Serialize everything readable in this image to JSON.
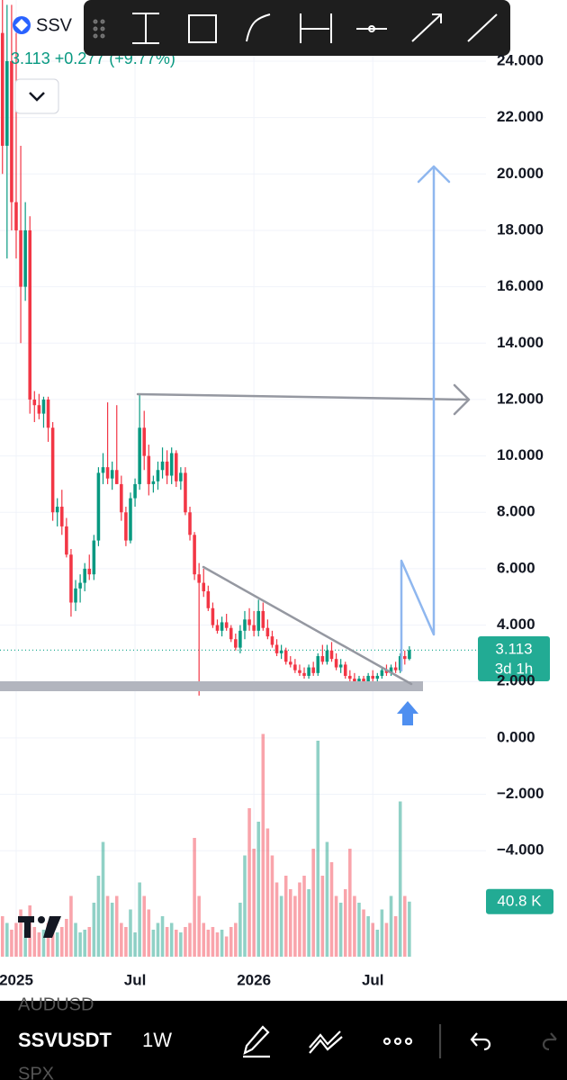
{
  "header": {
    "symbol": "SSV",
    "change": "+0.277 (+9.77%)"
  },
  "bottom_bar": {
    "symbol": "SSVUSDT",
    "interval": "1W",
    "prev_symbol": "AUDUSD",
    "next_symbol": "SPX"
  },
  "chart_data": {
    "type": "candlestick",
    "up_color": "#089981",
    "down_color": "#f23645",
    "grid": true,
    "last_price": 3.113,
    "countdown": "3d 1h",
    "volume_label": {
      "value": 40.8,
      "label": "40.8 K"
    },
    "xlim": [
      -3.54,
      102.76
    ],
    "xticks": [
      {
        "value": 0,
        "label": "2025"
      },
      {
        "value": 26,
        "label": "Jul"
      },
      {
        "value": 52,
        "label": "2026"
      },
      {
        "value": 78,
        "label": "Jul"
      }
    ],
    "ylim": [
      -7.76,
      26.17
    ],
    "yticks": [
      {
        "value": 24,
        "label": "24.000"
      },
      {
        "value": 22,
        "label": "22.000"
      },
      {
        "value": 20,
        "label": "20.000"
      },
      {
        "value": 18,
        "label": "18.000"
      },
      {
        "value": 16,
        "label": "16.000"
      },
      {
        "value": 14,
        "label": "14.000"
      },
      {
        "value": 12,
        "label": "12.000"
      },
      {
        "value": 10,
        "label": "10.000"
      },
      {
        "value": 8,
        "label": "8.000"
      },
      {
        "value": 6,
        "label": "6.000"
      },
      {
        "value": 4,
        "label": "4.000"
      },
      {
        "value": 2,
        "label": "2.000"
      },
      {
        "value": 0,
        "label": "0.000"
      },
      {
        "value": -2,
        "label": "−2.000"
      },
      {
        "value": -4,
        "label": "−4.000"
      }
    ],
    "y2lim": [
      0,
      200
    ],
    "x": [
      -3,
      -2,
      -1,
      0,
      1,
      2,
      3,
      4,
      5,
      6,
      7,
      8,
      9,
      10,
      11,
      12,
      13,
      14,
      15,
      16,
      17,
      18,
      19,
      20,
      21,
      22,
      23,
      24,
      25,
      26,
      27,
      28,
      29,
      30,
      31,
      32,
      33,
      34,
      35,
      36,
      37,
      38,
      39,
      40,
      41,
      42,
      43,
      44,
      45,
      46,
      47,
      48,
      49,
      50,
      51,
      52,
      53,
      54,
      55,
      56,
      57,
      58,
      59,
      60,
      61,
      62,
      63,
      64,
      65,
      66,
      67,
      68,
      69,
      70,
      71,
      72,
      73,
      74,
      75,
      76,
      77,
      78,
      79,
      80,
      81,
      82,
      83,
      84,
      85,
      86
    ],
    "open": [
      25,
      21,
      24,
      19,
      18,
      16,
      18,
      12,
      11.8,
      11.5,
      12,
      11,
      8,
      8.2,
      7.5,
      6.5,
      4.8,
      5.3,
      5.5,
      6,
      5.8,
      7,
      9.4,
      9.6,
      9.2,
      9.5,
      9,
      8,
      7,
      8.5,
      9,
      11,
      10,
      9,
      9.1,
      9.5,
      9.8,
      9.3,
      10.1,
      9.1,
      9.4,
      8,
      7.2,
      5.8,
      5.5,
      5.2,
      4.6,
      4,
      3.8,
      4.1,
      3.9,
      3.5,
      3.2,
      3.8,
      4.2,
      4,
      3.8,
      4.5,
      3.9,
      3.6,
      3.3,
      3,
      3.1,
      2.7,
      2.6,
      2.4,
      2.3,
      2.2,
      2.5,
      2.3,
      2.9,
      2.7,
      3.1,
      2.8,
      2.5,
      2.6,
      2.2,
      2.1,
      2,
      2.1,
      2,
      2.2,
      2.1,
      2.2,
      2.4,
      2.3,
      2.5,
      2.4,
      2.9,
      2.8
    ],
    "high": [
      26.5,
      26,
      26,
      25,
      21,
      19,
      18.5,
      12.3,
      12.2,
      12.1,
      12.1,
      11.2,
      8.5,
      8.8,
      7.8,
      6.7,
      5.6,
      5.8,
      6.2,
      6.5,
      7.2,
      9.6,
      10.1,
      11.9,
      9.8,
      11.8,
      9.3,
      8.2,
      8.7,
      9.2,
      12.2,
      11.6,
      10.4,
      9.3,
      9.8,
      10.3,
      10.2,
      10.3,
      10.2,
      9.6,
      9.6,
      8.2,
      7.3,
      6.2,
      6,
      5.4,
      4.8,
      4.2,
      4.3,
      4.4,
      4,
      3.7,
      4,
      4.5,
      4.6,
      4.5,
      4.9,
      4.8,
      4.2,
      3.8,
      3.5,
      3.3,
      3.2,
      2.9,
      2.8,
      2.6,
      2.5,
      2.6,
      2.7,
      3,
      3.3,
      3.3,
      3.4,
      3,
      2.8,
      2.7,
      2.4,
      2.3,
      2.2,
      2.2,
      2.3,
      2.4,
      2.3,
      2.5,
      2.6,
      2.6,
      2.7,
      3,
      3.1,
      3.25
    ],
    "low": [
      20,
      17,
      18,
      17,
      14,
      15.5,
      11.5,
      11.2,
      11.3,
      11,
      10.5,
      7.7,
      7.5,
      7.2,
      6.4,
      4.3,
      4.5,
      4.8,
      5.2,
      5.6,
      5.6,
      6.8,
      9,
      9,
      8.8,
      9.2,
      7.7,
      6.8,
      6.9,
      8.2,
      8.8,
      9.5,
      8.6,
      8.7,
      8.8,
      9.2,
      9,
      9,
      8.9,
      8.8,
      7.9,
      7,
      5.6,
      1.5,
      5,
      4.5,
      3.9,
      3.7,
      3.6,
      3.8,
      3.4,
      3.1,
      3,
      3.5,
      3.8,
      3.6,
      3.6,
      3.8,
      3.5,
      3.2,
      2.9,
      2.8,
      2.6,
      2.5,
      2.3,
      2.2,
      2.1,
      2.1,
      2.2,
      2.2,
      2.6,
      2.6,
      2.7,
      2.4,
      2.3,
      2.1,
      1.9,
      1.9,
      1.9,
      1.9,
      1.9,
      2,
      2,
      2.1,
      2.2,
      2.2,
      2.3,
      2.3,
      2.6,
      2.75
    ],
    "close": [
      21,
      24,
      19,
      18,
      16,
      18,
      12,
      11.8,
      11.5,
      12,
      11,
      8,
      8.2,
      7.5,
      6.5,
      4.8,
      5.3,
      5.5,
      6,
      5.8,
      7,
      9.4,
      9.6,
      9.2,
      9.5,
      9,
      8,
      7,
      8.5,
      9,
      11,
      10,
      9,
      9.1,
      9.5,
      9.8,
      9.3,
      10.1,
      9.1,
      9.4,
      8,
      7.2,
      5.8,
      5.5,
      5.2,
      4.6,
      4,
      3.8,
      4.1,
      3.9,
      3.5,
      3.2,
      3.8,
      4.2,
      4,
      3.8,
      4.5,
      3.9,
      3.6,
      3.3,
      3,
      3.1,
      2.7,
      2.6,
      2.4,
      2.3,
      2.2,
      2.5,
      2.3,
      2.9,
      2.7,
      3.1,
      2.8,
      2.5,
      2.6,
      2.2,
      2.1,
      2,
      2.1,
      2,
      2.2,
      2.1,
      2.2,
      2.4,
      2.3,
      2.5,
      2.4,
      2.9,
      2.8,
      3.113
    ],
    "volume": [
      30,
      25,
      20,
      25,
      35,
      20,
      38,
      22,
      18,
      20,
      25,
      30,
      18,
      22,
      28,
      45,
      25,
      18,
      20,
      22,
      40,
      60,
      85,
      45,
      40,
      45,
      25,
      22,
      35,
      18,
      55,
      45,
      35,
      20,
      25,
      30,
      22,
      25,
      20,
      18,
      22,
      25,
      88,
      45,
      25,
      20,
      22,
      18,
      20,
      15,
      22,
      25,
      40,
      75,
      110,
      80,
      100,
      165,
      95,
      75,
      55,
      45,
      60,
      50,
      45,
      55,
      60,
      50,
      80,
      160,
      60,
      85,
      70,
      45,
      40,
      50,
      80,
      45,
      40,
      35,
      30,
      25,
      20,
      35,
      25,
      45,
      30,
      115,
      45,
      40.8
    ]
  }
}
